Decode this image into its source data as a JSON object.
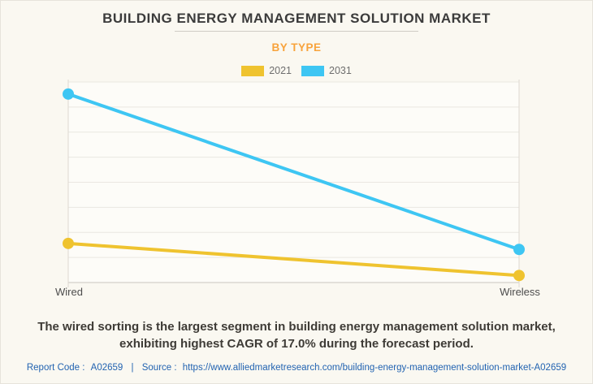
{
  "header": {
    "title": "BUILDING ENERGY MANAGEMENT SOLUTION MARKET",
    "subtitle": "BY TYPE"
  },
  "legend": {
    "items": [
      {
        "label": "2021",
        "color": "#efc32f"
      },
      {
        "label": "2031",
        "color": "#3ec6f3"
      }
    ]
  },
  "chart_data": {
    "type": "line",
    "categories": [
      "Wired",
      "Wireless"
    ],
    "series": [
      {
        "name": "2021",
        "color": "#efc32f",
        "values": [
          19.5,
          3.5
        ]
      },
      {
        "name": "2031",
        "color": "#3ec6f3",
        "values": [
          94,
          16.5
        ]
      }
    ],
    "title": "BUILDING ENERGY MANAGEMENT SOLUTION MARKET",
    "subtitle": "BY TYPE",
    "xlabel": "",
    "ylabel": "",
    "ylim": [
      0,
      100
    ],
    "y_tick_labels_visible": false,
    "grid": true,
    "gridline_count": 9,
    "legend_position": "top"
  },
  "footnote": {
    "lines": [
      "The wired sorting is the largest segment in building energy management solution market,",
      "exhibiting highest CAGR of 17.0% during the forecast period."
    ]
  },
  "footer": {
    "report_code_label": "Report Code :",
    "report_code_value": "A02659",
    "separator": "|",
    "source_label": "Source :",
    "source_url": "https://www.alliedmarketresearch.com/building-energy-management-solution-market-A02659"
  },
  "colors": {
    "accent_orange": "#f8a33c",
    "link_blue": "#2263b1",
    "series_2021": "#efc32f",
    "series_2031": "#3ec6f3"
  }
}
